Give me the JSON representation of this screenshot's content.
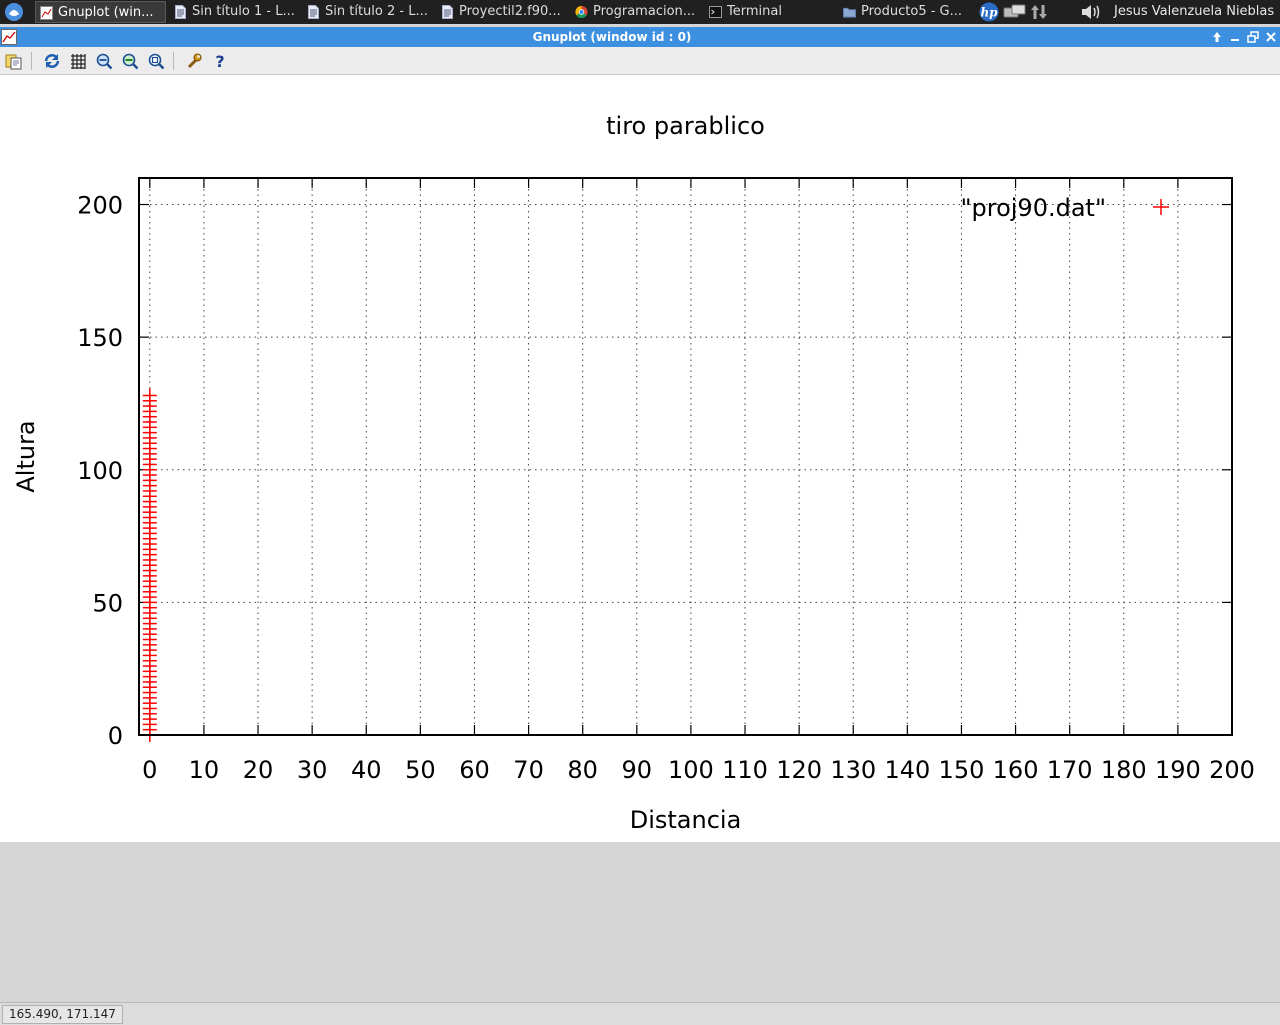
{
  "taskbar": {
    "tasks": [
      {
        "label": "Gnuplot (win...",
        "icon": "gnuplot-icon"
      },
      {
        "label": "Sin título 1 - L...",
        "icon": "document-icon"
      },
      {
        "label": "Sin título 2 - L...",
        "icon": "document-icon"
      },
      {
        "label": "Proyectil2.f90...",
        "icon": "document-icon"
      },
      {
        "label": "Programacion...",
        "icon": "chrome-icon"
      },
      {
        "label": "Terminal",
        "icon": "terminal-icon"
      },
      {
        "label": "Producto5 - G...",
        "icon": "folder-icon"
      }
    ],
    "user": "Jesus Valenzuela Nieblas"
  },
  "window": {
    "title": "Gnuplot (window id : 0)"
  },
  "toolbar": {
    "buttons": [
      "copy-icon",
      "replot-icon",
      "grid-icon",
      "zoom-previous-icon",
      "zoom-next-icon",
      "autoscale-icon",
      "options-icon",
      "help-icon"
    ]
  },
  "status": {
    "coords": "165.490,  171.147"
  },
  "colors": {
    "series": "#ff0000",
    "titlebar": "#3d8fe0",
    "taskbar": "#202020"
  },
  "chart_data": {
    "type": "scatter",
    "title": "tiro parablico",
    "xlabel": "Distancia",
    "ylabel": "Altura",
    "xlim": [
      -2,
      200
    ],
    "ylim": [
      0,
      210
    ],
    "xticks": [
      "0",
      "10",
      "20",
      "30",
      "40",
      "50",
      "60",
      "70",
      "80",
      "90",
      "100",
      "110",
      "120",
      "130",
      "140",
      "150",
      "160",
      "170",
      "180",
      "190",
      "200"
    ],
    "yticks": [
      "0",
      "50",
      "100",
      "150",
      "200"
    ],
    "grid": true,
    "legend_position": "top-right",
    "series": [
      {
        "name": "\"proj90.dat\"",
        "marker": "+",
        "x": [
          0,
          0,
          0,
          0,
          0,
          0,
          0,
          0,
          0,
          0,
          0,
          0,
          0,
          0,
          0,
          0,
          0,
          0,
          0,
          0,
          0,
          0,
          0,
          0,
          0,
          0,
          0,
          0,
          0,
          0,
          0,
          0,
          0,
          0,
          0,
          0,
          0,
          0,
          0,
          0,
          0,
          0,
          0,
          0,
          0,
          0,
          0,
          0,
          0,
          0,
          0,
          0,
          0,
          0,
          0,
          0,
          0,
          0,
          0,
          0,
          0,
          0,
          0,
          0,
          0
        ],
        "y": [
          0,
          2,
          4,
          6,
          8,
          10,
          12,
          14,
          16,
          18,
          20,
          22,
          24,
          26,
          28,
          30,
          32,
          34,
          36,
          38,
          40,
          42,
          44,
          46,
          48,
          50,
          52,
          54,
          56,
          58,
          60,
          62,
          64,
          66,
          68,
          70,
          72,
          74,
          76,
          78,
          80,
          82,
          84,
          86,
          88,
          90,
          92,
          94,
          96,
          98,
          100,
          102,
          104,
          106,
          108,
          110,
          112,
          114,
          116,
          118,
          120,
          122,
          124,
          126,
          128
        ]
      }
    ]
  }
}
